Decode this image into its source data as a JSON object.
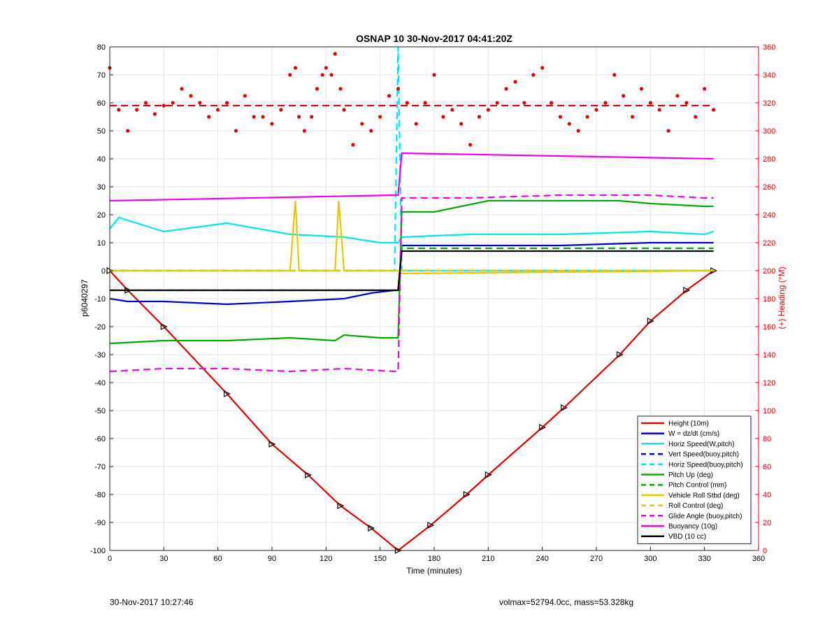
{
  "chart_data": {
    "type": "line",
    "title": "OSNAP 10 30-Nov-2017 04:41:20Z",
    "xlabel": "Time (minutes)",
    "ylabel": "p6040297",
    "y2label": "(+) Heading (°M)",
    "xlim": [
      0,
      360
    ],
    "ylim": [
      -100,
      80
    ],
    "y2lim": [
      0,
      360
    ],
    "xticks": [
      0,
      30,
      60,
      90,
      120,
      150,
      180,
      210,
      240,
      270,
      300,
      330,
      360
    ],
    "yticks": [
      -100,
      -90,
      -80,
      -70,
      -60,
      -50,
      -40,
      -30,
      -20,
      -10,
      0,
      10,
      20,
      30,
      40,
      50,
      60,
      70,
      80
    ],
    "y2ticks": [
      0,
      20,
      40,
      60,
      80,
      100,
      120,
      140,
      160,
      180,
      200,
      220,
      240,
      260,
      280,
      300,
      320,
      340,
      360
    ],
    "grid": true,
    "legend_position": "lower-right",
    "series": [
      {
        "name": "Height (10m)",
        "color": "#dd0000",
        "style": "solid",
        "markers": "triangle",
        "x": [
          0,
          10,
          30,
          65,
          90,
          110,
          128,
          145,
          160,
          178,
          198,
          210,
          240,
          252,
          283,
          300,
          320,
          335
        ],
        "y": [
          0,
          -7,
          -20,
          -44,
          -62,
          -73,
          -84,
          -92,
          -100,
          -91,
          -80,
          -73,
          -56,
          -49,
          -30,
          -18,
          -7,
          0
        ]
      },
      {
        "name": "W = dz/dt (cm/s)",
        "color": "#0000cc",
        "style": "solid",
        "x": [
          0,
          10,
          30,
          65,
          100,
          130,
          145,
          158,
          160,
          162,
          200,
          250,
          300,
          330,
          335
        ],
        "y": [
          -10,
          -11,
          -11,
          -12,
          -11,
          -10,
          -8,
          -7,
          -7,
          9,
          9,
          9,
          10,
          10,
          10
        ]
      },
      {
        "name": "Horiz Speed(W,pitch)",
        "color": "#00e5ee",
        "style": "solid",
        "x": [
          0,
          5,
          15,
          30,
          65,
          100,
          130,
          150,
          158,
          160,
          162,
          200,
          250,
          300,
          330,
          335
        ],
        "y": [
          15,
          19,
          17,
          14,
          17,
          13,
          12,
          10,
          10,
          10,
          12,
          13,
          13,
          14,
          13,
          14
        ]
      },
      {
        "name": "Vert Speed(buoy,pitch)",
        "color": "#0000cc",
        "style": "dashed",
        "x": [
          0,
          160,
          160,
          335
        ],
        "y": [
          0,
          0,
          0,
          0
        ]
      },
      {
        "name": "Horiz Speed(buoy,pitch)",
        "color": "#00e5ee",
        "style": "dashed",
        "x": [
          0,
          158,
          160,
          162,
          335
        ],
        "y": [
          0,
          0,
          80,
          0,
          0
        ]
      },
      {
        "name": "Pitch Up (deg)",
        "color": "#00aa00",
        "style": "solid",
        "x": [
          0,
          30,
          65,
          100,
          125,
          130,
          150,
          160,
          162,
          180,
          210,
          250,
          283,
          300,
          330,
          335
        ],
        "y": [
          -26,
          -25,
          -25,
          -24,
          -25,
          -23,
          -24,
          -24,
          21,
          21,
          25,
          25,
          25,
          24,
          23,
          23
        ]
      },
      {
        "name": "Pitch Control (mm)",
        "color": "#00aa00",
        "style": "dashed",
        "x": [
          0,
          160,
          162,
          335
        ],
        "y": [
          -7,
          -7,
          8,
          8
        ]
      },
      {
        "name": "Vehicle Roll Stbd (deg)",
        "color": "#e6c800",
        "style": "solid",
        "x": [
          0,
          100,
          103,
          105,
          125,
          127,
          130,
          158,
          160,
          162,
          335
        ],
        "y": [
          0,
          0,
          25,
          0,
          0,
          25,
          0,
          0,
          0,
          -1,
          0
        ]
      },
      {
        "name": "Roll Control (deg)",
        "color": "#e6c800",
        "style": "dashed",
        "x": [
          0,
          160,
          335
        ],
        "y": [
          0,
          0,
          0
        ]
      },
      {
        "name": "Glide Angle (buoy,pitch)",
        "color": "#ee00ee",
        "style": "dashed",
        "x": [
          0,
          30,
          65,
          100,
          130,
          158,
          160,
          162,
          200,
          250,
          300,
          330,
          335
        ],
        "y": [
          -36,
          -35,
          -35,
          -36,
          -35,
          -36,
          -36,
          26,
          26,
          27,
          27,
          26,
          26
        ]
      },
      {
        "name": "Buoyancy (10g)",
        "color": "#ee00ee",
        "style": "solid",
        "x": [
          0,
          158,
          160,
          162,
          335
        ],
        "y": [
          25,
          27,
          27,
          42,
          40
        ]
      },
      {
        "name": "VBD (10 cc)",
        "color": "#000000",
        "style": "solid",
        "x": [
          0,
          158,
          160,
          162,
          335
        ],
        "y": [
          -7,
          -7,
          -7,
          7,
          7
        ]
      },
      {
        "name": "Heading",
        "color": "#dd0000",
        "style": "dots",
        "axis": "right",
        "x": [
          0,
          5,
          10,
          15,
          20,
          25,
          30,
          35,
          40,
          45,
          50,
          55,
          60,
          65,
          70,
          75,
          80,
          85,
          90,
          95,
          100,
          103,
          105,
          108,
          112,
          115,
          118,
          120,
          123,
          125,
          128,
          130,
          135,
          140,
          145,
          150,
          155,
          160,
          165,
          170,
          175,
          180,
          185,
          190,
          195,
          200,
          205,
          210,
          215,
          220,
          225,
          230,
          235,
          240,
          245,
          250,
          255,
          260,
          265,
          270,
          275,
          280,
          285,
          290,
          295,
          300,
          305,
          310,
          315,
          320,
          325,
          330,
          335
        ],
        "y": [
          345,
          315,
          300,
          315,
          320,
          312,
          318,
          320,
          330,
          325,
          320,
          310,
          315,
          320,
          300,
          325,
          310,
          310,
          305,
          315,
          340,
          345,
          310,
          300,
          310,
          330,
          340,
          345,
          340,
          355,
          330,
          315,
          290,
          305,
          300,
          310,
          325,
          330,
          320,
          305,
          320,
          340,
          310,
          315,
          305,
          290,
          310,
          315,
          320,
          330,
          335,
          320,
          340,
          345,
          320,
          310,
          305,
          300,
          310,
          315,
          320,
          340,
          325,
          310,
          330,
          320,
          315,
          300,
          325,
          320,
          310,
          330,
          315
        ]
      },
      {
        "name": "Heading target",
        "color": "#dd0000",
        "style": "dashed",
        "axis": "right",
        "x": [
          0,
          335
        ],
        "y": [
          318,
          318
        ]
      }
    ]
  },
  "footer": {
    "left": "30-Nov-2017 10:27:46",
    "right": "volmax=52794.0cc, mass=53.328kg"
  }
}
